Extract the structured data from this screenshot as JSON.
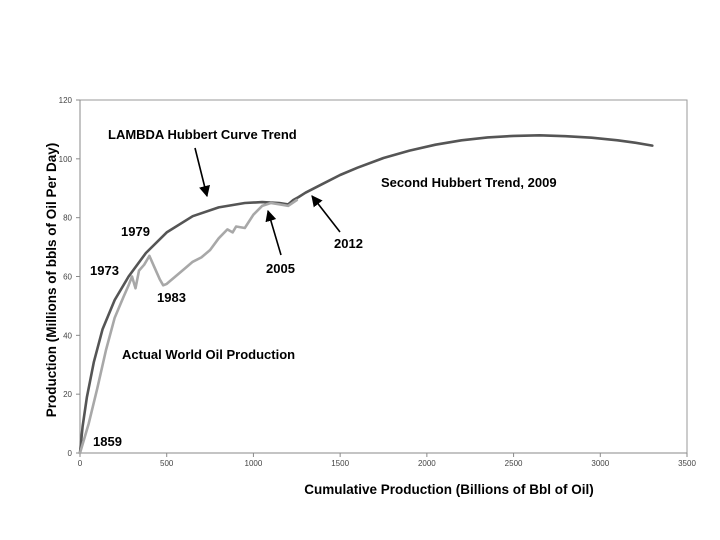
{
  "chart_data": {
    "type": "line",
    "title": "",
    "xlabel": "Cumulative Production  (Billions of Bbl of Oil)",
    "ylabel": "Production  (Millions of bbls of Oil Per Day)",
    "xlim": [
      0,
      3500
    ],
    "ylim": [
      0,
      120
    ],
    "xticks": [
      0,
      500,
      1000,
      1500,
      2000,
      2500,
      3000,
      3500
    ],
    "yticks": [
      0,
      20,
      40,
      60,
      80,
      100,
      120
    ],
    "grid": false,
    "colors": {
      "hubbert": "#555555",
      "actual": "#a8a8a8",
      "frame": "#9a9a9a"
    },
    "series": [
      {
        "name": "LAMBDA Hubbert Curve Trend",
        "x": [
          0,
          15,
          40,
          80,
          130,
          200,
          280,
          380,
          500,
          650,
          800,
          950,
          1050,
          1150,
          1200,
          1210,
          1230,
          1260,
          1300,
          1400,
          1500,
          1600,
          1750,
          1900,
          2050,
          2200,
          2350,
          2500,
          2650,
          2800,
          2950,
          3100,
          3200,
          3300
        ],
        "y": [
          0,
          9,
          19,
          31,
          42,
          52,
          60,
          68,
          75,
          80.5,
          83.5,
          85,
          85.3,
          85,
          84.5,
          85,
          86,
          87,
          88.5,
          91.5,
          94.5,
          97,
          100.3,
          102.8,
          104.8,
          106.3,
          107.3,
          107.8,
          108,
          107.7,
          107.2,
          106.3,
          105.5,
          104.5
        ]
      },
      {
        "name": "Actual World Oil Production",
        "x": [
          0,
          20,
          50,
          100,
          150,
          200,
          250,
          280,
          300,
          320,
          340,
          370,
          400,
          430,
          460,
          480,
          500,
          520,
          550,
          600,
          650,
          700,
          750,
          800,
          850,
          880,
          900,
          950,
          1000,
          1050,
          1100,
          1150,
          1200,
          1250
        ],
        "y": [
          0,
          4,
          10,
          22,
          35,
          46,
          53,
          57,
          60,
          56,
          62,
          64,
          67,
          63,
          59,
          57,
          57.5,
          58.5,
          60,
          62.5,
          65,
          66.5,
          69,
          73,
          76,
          75,
          77,
          76.5,
          81,
          84,
          85,
          84.5,
          84,
          86
        ]
      }
    ],
    "annotations": [
      {
        "text": "LAMBDA Hubbert Curve Trend",
        "x": 750,
        "y": 85
      },
      {
        "text": "Second Hubbert Trend, 2009"
      },
      {
        "text": "1979",
        "x": 430,
        "y": 73
      },
      {
        "text": "1973",
        "x": 300,
        "y": 60
      },
      {
        "text": "1983",
        "x": 470,
        "y": 57
      },
      {
        "text": "2005",
        "x": 1100,
        "y": 85
      },
      {
        "text": "2012",
        "x": 1320,
        "y": 88
      },
      {
        "text": "1859",
        "x": 0,
        "y": 0
      },
      {
        "text": "Actual World Oil Production"
      }
    ]
  }
}
